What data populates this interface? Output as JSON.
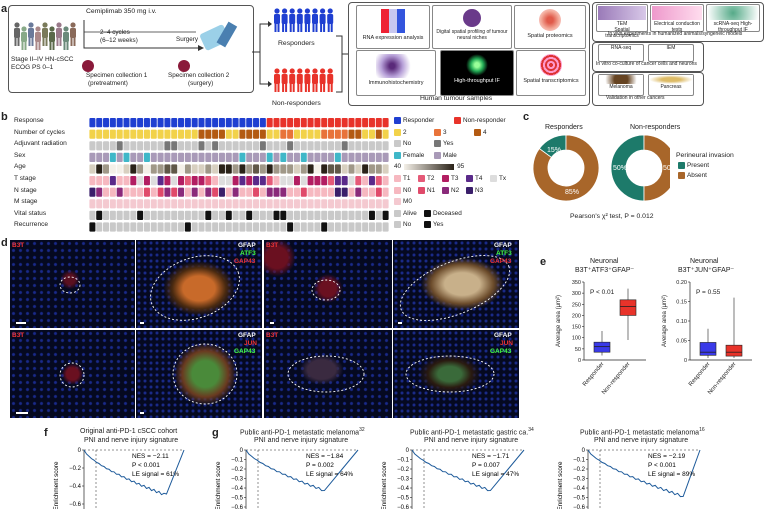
{
  "panels": {
    "a": "a",
    "b": "b",
    "c": "c",
    "d": "d",
    "e": "e",
    "f": "f",
    "g": "g"
  },
  "a": {
    "drug": "Cemiplimab 350 mg i.v.",
    "cycles": "2–4 cycles",
    "weeks": "(6–12 weeks)",
    "surgery": "Surgery",
    "stage": "Stage II–IV HN-cSCC",
    "ecog": "ECOG PS 0–1",
    "spec1": "Specimen collection 1",
    "spec1b": "(pretreatment)",
    "spec2": "Specimen collection 2",
    "spec2b": "(surgery)",
    "responders": "Responders",
    "nonresponders": "Non-responders",
    "tiles": [
      "RNA expression analysis",
      "Digital spatial profiling of tumour neural niches",
      "Spatial proteomics",
      "Immunohistochemistry",
      "High-throughput IF",
      "Spatial transcriptomics"
    ],
    "human": "Human tumour samples",
    "side_top": [
      "TEM",
      "Spatial transcriptomics",
      "Electrical conduction tests",
      "scRNA-seq",
      "High-throughput IF"
    ],
    "side_top_cap": "In vivo experiments in humanized animals/syngeneic models",
    "side_mid": [
      "RNA-seq",
      "IEM"
    ],
    "side_mid_cap": "In vitro co-culture of cancer cells and neurons",
    "side_bot": [
      "Melanoma",
      "Pancreas"
    ],
    "side_bot_cap": "Validation in other cancers"
  },
  "b": {
    "rows": [
      "Response",
      "Number of cycles",
      "Adjuvant radiation",
      "Sex",
      "Age",
      "T stage",
      "N stage",
      "M stage",
      "Vital status",
      "Recurrence"
    ],
    "legend": {
      "response": [
        "Responder",
        "Non-responder"
      ],
      "cycles": [
        "2",
        "3",
        "4"
      ],
      "adj": [
        "No",
        "Yes"
      ],
      "sex": [
        "Female",
        "Male"
      ],
      "age_min": "40",
      "age_max": "95",
      "t": [
        "T1",
        "T2",
        "T3",
        "T4",
        "Tx"
      ],
      "n": [
        "N0",
        "N1",
        "N2",
        "N3"
      ],
      "m": [
        "M0"
      ],
      "vital": [
        "Alive",
        "Deceased"
      ],
      "rec": [
        "No",
        "Yes"
      ]
    },
    "colors": {
      "responder": "#1f3fd1",
      "nonresponder": "#e8332a",
      "c2": "#f2d24a",
      "c3": "#e8733a",
      "c4": "#b35a12",
      "no": "#c9c9c9",
      "yes": "#777777",
      "female": "#3fb7c8",
      "male": "#a99ab8",
      "t1": "#f6b8c0",
      "t2": "#e55a78",
      "t3": "#b21e62",
      "t4": "#5a2a8a",
      "tx": "#dddddd",
      "n0": "#f6b8c0",
      "n1": "#e04a6a",
      "n2": "#8a2a7a",
      "n3": "#3a1f6a",
      "m0": "#f4c9d0",
      "alive": "#c9c9c9",
      "deceased": "#111111"
    }
  },
  "c": {
    "responders": "Responders",
    "nonresponders": "Non-responders",
    "resp_pct": [
      "15%",
      "85%"
    ],
    "nonresp_pct": [
      "50%",
      "50%"
    ],
    "legend_title": "Perineural invasion",
    "legend": [
      "Present",
      "Absent"
    ],
    "stat": "Pearson's χ² test, P = 0.012",
    "present_color": "#1d7a6a",
    "absent_color": "#a8662a"
  },
  "d": {
    "labels_top_left": "B3T",
    "labels_top_right": [
      "GFAP",
      "ATF3",
      "GAP43"
    ],
    "labels_bot_right": [
      "GFAP",
      "JUN",
      "GAP43"
    ]
  },
  "e": {
    "left_title": "Neuronal",
    "left_sub": "B3T⁺ATF3⁺GFAP⁻",
    "right_title": "Neuronal",
    "right_sub": "B3T⁺JUN⁺GFAP⁻",
    "ylabel": "Average area (μm²)",
    "left_p": "P < 0.01",
    "right_p": "P = 0.55",
    "left_ticks": [
      "0",
      "50",
      "100",
      "150",
      "200",
      "250",
      "300",
      "350"
    ],
    "right_ticks": [
      "0",
      "0.05",
      "0.10",
      "0.15",
      "0.20"
    ],
    "groups": [
      "Responder",
      "Non-responder"
    ]
  },
  "f": {
    "title1": "Original anti-PD-1 cSCC cohort",
    "title2": "PNI and nerve injury signature",
    "nes": "NES = −2.11",
    "p": "P < 0.001",
    "le": "LE signal = 61%"
  },
  "g": [
    {
      "title1": "Public anti-PD-1 metastatic melanoma",
      "sup": "32",
      "title2": "PNI and nerve injury signature",
      "nes": "NES = −1.84",
      "p": "P = 0.002",
      "le": "LE signal = 64%"
    },
    {
      "title1": "Public anti-PD-1 metastatic gastric ca.",
      "sup": "34",
      "title2": "PNI and nerve injury signature",
      "nes": "NES = −1.71",
      "p": "P = 0.007",
      "le": "LE signal = 47%"
    },
    {
      "title1": "Public anti-PD-1 metastatic melanoma",
      "sup": "16",
      "title2": "PNI and nerve injury signature",
      "nes": "NES = −2.19",
      "p": "P < 0.001",
      "le": "LE signal = 89%"
    }
  ],
  "es_label": "Enrichment score",
  "es_ticks": [
    "0",
    "−0.1",
    "−0.2",
    "−0.3",
    "−0.4",
    "−0.5",
    "−0.6"
  ],
  "es_ticks_f": [
    "0",
    "−0.2",
    "−0.4",
    "−0.6"
  ]
}
